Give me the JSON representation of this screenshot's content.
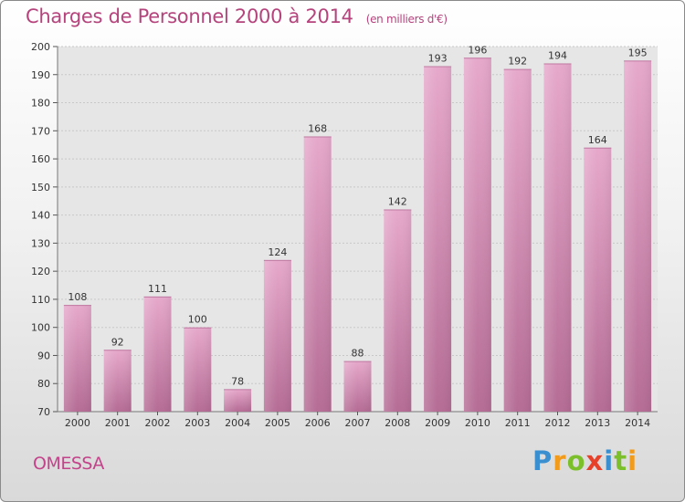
{
  "title": "Charges de Personnel 2000 à 2014",
  "subtitle": "(en milliers d'€)",
  "town": "OMESSA",
  "logo": {
    "letters": [
      "P",
      "r",
      "o",
      "x",
      "i",
      "t",
      "i"
    ],
    "colors": [
      "#3a8fd0",
      "#f29a1a",
      "#7bbf2a",
      "#e8412a",
      "#3a8fd0",
      "#7bbf2a",
      "#f29a1a"
    ]
  },
  "colors": {
    "bar_top": "#e6a8cb",
    "bar_bottom": "#b56c95",
    "plot_bg": "#e6e6e6",
    "grid": "#c8c8c8",
    "title": "#b5437c"
  },
  "chart_data": {
    "type": "bar",
    "categories": [
      "2000",
      "2001",
      "2002",
      "2003",
      "2004",
      "2005",
      "2006",
      "2007",
      "2008",
      "2009",
      "2010",
      "2011",
      "2012",
      "2013",
      "2014"
    ],
    "values": [
      108,
      92,
      111,
      100,
      78,
      124,
      168,
      88,
      142,
      193,
      196,
      192,
      194,
      164,
      195
    ],
    "title": "Charges de Personnel 2000 à 2014",
    "ylim": [
      70,
      200
    ],
    "yticks": [
      70,
      80,
      90,
      100,
      110,
      120,
      130,
      140,
      150,
      160,
      170,
      180,
      190,
      200
    ],
    "grid": true,
    "data_labels": true
  }
}
